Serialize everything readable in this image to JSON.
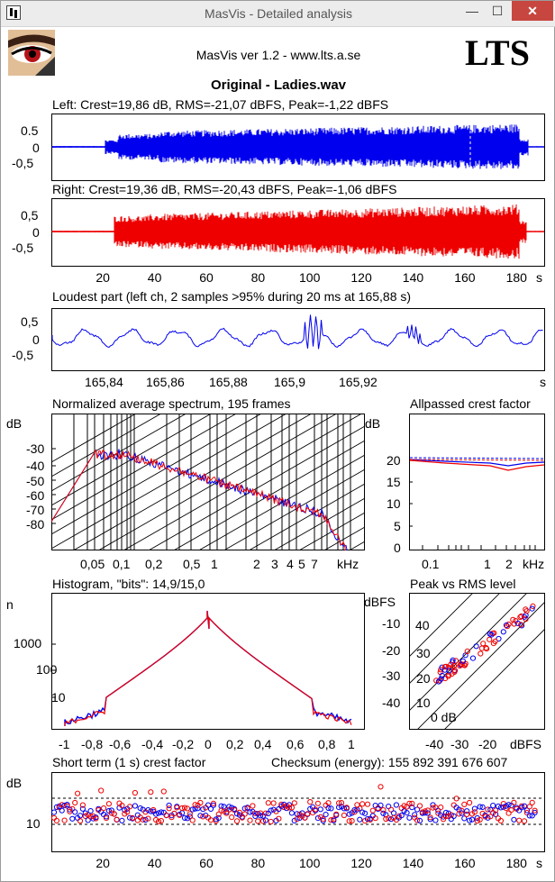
{
  "window": {
    "title": "MasVis - Detailed analysis",
    "min_glyph": "—",
    "max_glyph": "☐",
    "close_glyph": "✕"
  },
  "header": {
    "text": "MasVis ver 1.2 - www.lts.a.se",
    "logo": "LTS"
  },
  "file_title": "Original - Ladies.wav",
  "left_channel": {
    "label": "Left: Crest=19,86 dB, RMS=-21,07 dBFS, Peak=-1,22 dBFS",
    "color": "#0000ee",
    "y_ticks": [
      "0.5",
      "0",
      "-0,5"
    ]
  },
  "right_channel": {
    "label": "Right: Crest=19,36 dB, RMS=-20,43 dBFS, Peak=-1,06 dBFS",
    "color": "#ee0000",
    "y_ticks": [
      "0,5",
      "0",
      "-0,5"
    ]
  },
  "time_axis": {
    "ticks": [
      "20",
      "40",
      "60",
      "80",
      "100",
      "120",
      "140",
      "160",
      "180"
    ],
    "unit": "s"
  },
  "loudest": {
    "label": "Loudest part (left  ch, 2 samples >95% during 20 ms at 165,88 s)",
    "y_ticks": [
      "0,5",
      "0",
      "-0,5"
    ],
    "x_ticks": [
      "165,84",
      "165,86",
      "165,88",
      "165,9",
      "165,92"
    ],
    "unit": "s"
  },
  "spectrum": {
    "title": "Normalized average spectrum, 195 frames",
    "ylabel": "dB",
    "y_ticks": [
      "-30",
      "-40",
      "-50",
      "-60",
      "-70",
      "-80"
    ],
    "x_ticks": [
      "0,05",
      "0,1",
      "0,2",
      "0,5",
      "1",
      "2",
      "3",
      "4",
      "5",
      "7"
    ],
    "unit": "kHz"
  },
  "allpass": {
    "title": "Allpassed crest factor",
    "ylabel": "dB",
    "y_ticks": [
      "20",
      "15",
      "10",
      "5",
      "0"
    ],
    "x_ticks": [
      "0.1",
      "1",
      "2"
    ],
    "unit": "kHz"
  },
  "histogram": {
    "title": "Histogram, \"bits\": 14,9/15,0",
    "ylabel": "n",
    "y_ticks": [
      "1000",
      "100",
      "10"
    ],
    "x_ticks": [
      "-1",
      "-0,8",
      "-0,6",
      "-0,4",
      "-0,2",
      "0",
      "0,2",
      "0,4",
      "0,6",
      "0,8",
      "1"
    ]
  },
  "peak_rms": {
    "title": "Peak vs RMS level",
    "ylabel": "dBFS",
    "y_ticks": [
      "-10",
      "-20",
      "-30",
      "-40"
    ],
    "x_ticks": [
      "-40",
      "-30",
      "-20"
    ],
    "unit": "dBFS",
    "diag_labels": [
      "40",
      "30",
      "20",
      "10",
      "0 dB"
    ]
  },
  "short_term": {
    "title": "Short term (1 s) crest factor",
    "checksum": "Checksum (energy):   155 892 391 676 607",
    "ylabel": "dB",
    "y_ticks": [
      "10"
    ],
    "x_ticks": [
      "20",
      "40",
      "60",
      "80",
      "100",
      "120",
      "140",
      "160",
      "180"
    ],
    "unit": "s"
  }
}
